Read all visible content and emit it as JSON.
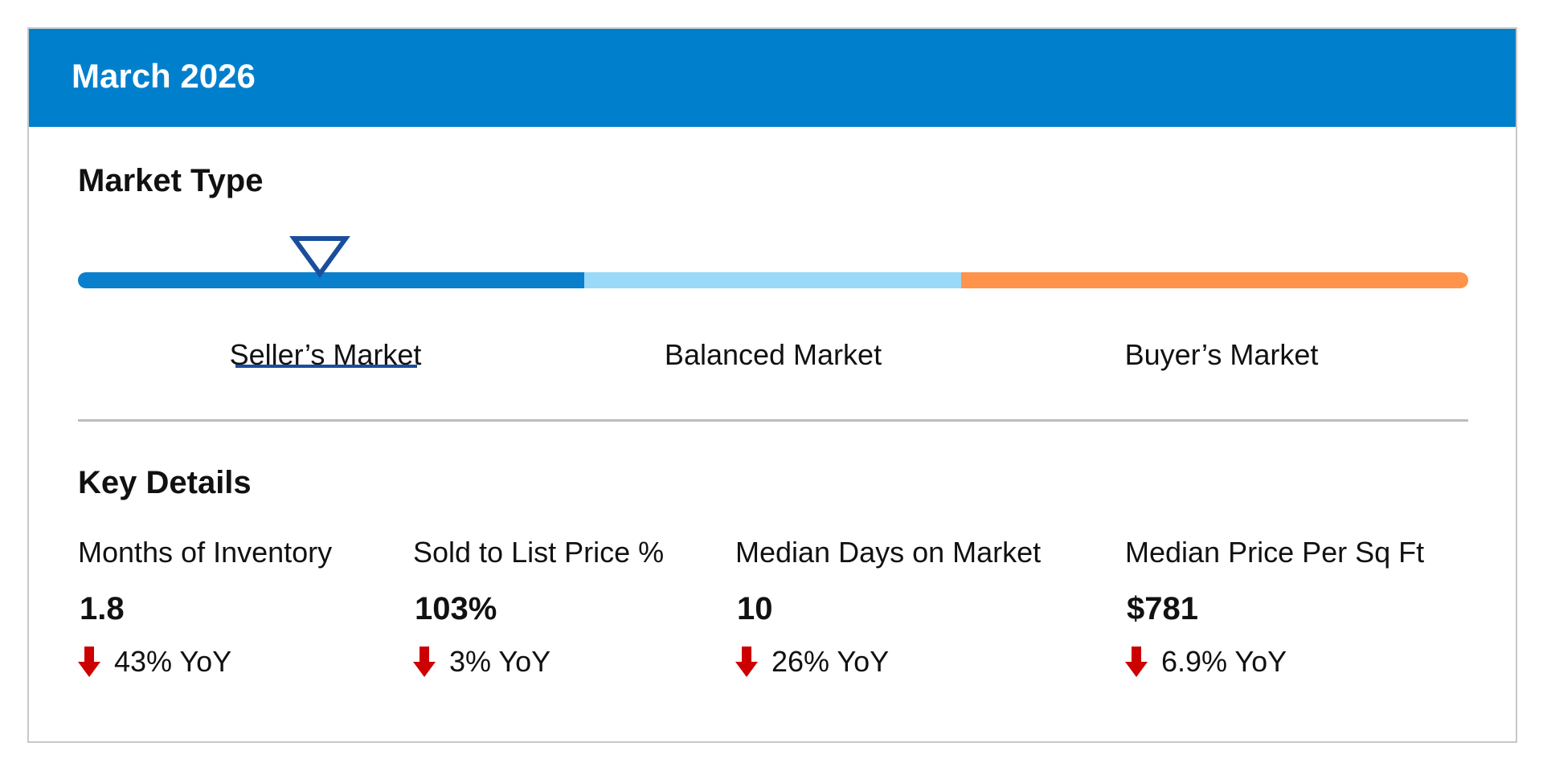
{
  "header": {
    "title": "March 2026",
    "color": "#0080cc"
  },
  "market_type": {
    "title": "Market Type",
    "segments": [
      {
        "label": "Seller’s Market",
        "color": "#0a7fcc",
        "active": true
      },
      {
        "label": "Balanced Market",
        "color": "#9ad9f8",
        "active": false
      },
      {
        "label": "Buyer’s Market",
        "color": "#ff934c",
        "active": false
      }
    ],
    "indicator_position": 0.174,
    "indicator_color": "#1a4e9c"
  },
  "key_details": {
    "title": "Key Details",
    "metrics": [
      {
        "label": "Months of Inventory",
        "value": "1.8",
        "change": "43% YoY",
        "direction": "down-arrow-icon"
      },
      {
        "label": "Sold to List Price %",
        "value": "103%",
        "change": "3% YoY",
        "direction": "down-arrow-icon"
      },
      {
        "label": "Median Days on Market",
        "value": "10",
        "change": "26% YoY",
        "direction": "down-arrow-icon"
      },
      {
        "label": "Median Price Per Sq Ft",
        "value": "$781",
        "change": "6.9% YoY",
        "direction": "down-arrow-icon"
      }
    ],
    "down_color": "#cc0000"
  }
}
